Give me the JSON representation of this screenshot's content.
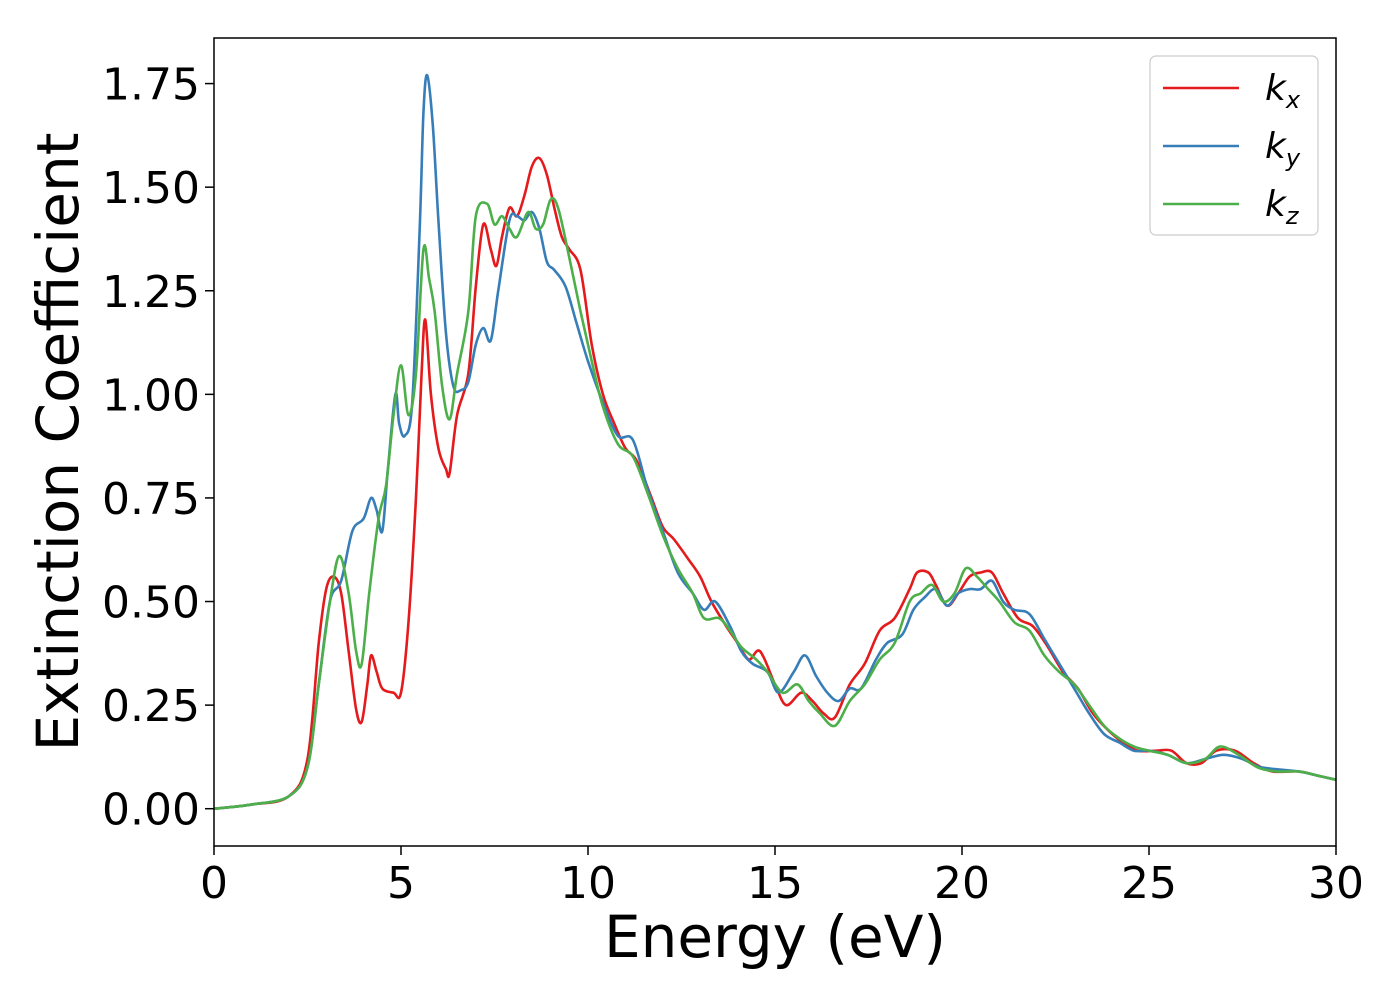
{
  "chart_data": {
    "type": "line",
    "title": "",
    "xlabel": "Energy (eV)",
    "ylabel": "Extinction Coefficient",
    "xlim": [
      0,
      30
    ],
    "ylim": [
      -0.09,
      1.86
    ],
    "xticks": [
      0,
      5,
      10,
      15,
      20,
      25,
      30
    ],
    "xtick_labels": [
      "0",
      "5",
      "10",
      "15",
      "20",
      "25",
      "30"
    ],
    "yticks": [
      0,
      0.25,
      0.5,
      0.75,
      1.0,
      1.25,
      1.5,
      1.75
    ],
    "ytick_labels": [
      "0.00",
      "0.25",
      "0.50",
      "0.75",
      "1.00",
      "1.25",
      "1.50",
      "1.75"
    ],
    "grid": false,
    "legend_position": "top-right",
    "series": [
      {
        "name": "k",
        "subscript": "x",
        "color": "#e41a1c",
        "points": [
          [
            0,
            0
          ],
          [
            1,
            0.01
          ],
          [
            2,
            0.03
          ],
          [
            2.5,
            0.12
          ],
          [
            2.8,
            0.4
          ],
          [
            3.0,
            0.53
          ],
          [
            3.2,
            0.56
          ],
          [
            3.4,
            0.52
          ],
          [
            3.6,
            0.38
          ],
          [
            3.8,
            0.24
          ],
          [
            3.95,
            0.21
          ],
          [
            4.1,
            0.3
          ],
          [
            4.2,
            0.37
          ],
          [
            4.35,
            0.33
          ],
          [
            4.5,
            0.29
          ],
          [
            4.8,
            0.28
          ],
          [
            5.0,
            0.28
          ],
          [
            5.2,
            0.45
          ],
          [
            5.4,
            0.75
          ],
          [
            5.55,
            1.05
          ],
          [
            5.65,
            1.18
          ],
          [
            5.8,
            1.0
          ],
          [
            6.0,
            0.87
          ],
          [
            6.2,
            0.82
          ],
          [
            6.3,
            0.81
          ],
          [
            6.5,
            0.95
          ],
          [
            6.8,
            1.05
          ],
          [
            7.0,
            1.26
          ],
          [
            7.2,
            1.41
          ],
          [
            7.4,
            1.35
          ],
          [
            7.55,
            1.31
          ],
          [
            7.7,
            1.38
          ],
          [
            7.9,
            1.45
          ],
          [
            8.1,
            1.43
          ],
          [
            8.3,
            1.48
          ],
          [
            8.5,
            1.55
          ],
          [
            8.7,
            1.57
          ],
          [
            8.9,
            1.53
          ],
          [
            9.1,
            1.45
          ],
          [
            9.3,
            1.38
          ],
          [
            9.5,
            1.35
          ],
          [
            9.8,
            1.3
          ],
          [
            10.1,
            1.12
          ],
          [
            10.4,
            1.0
          ],
          [
            10.7,
            0.93
          ],
          [
            11.0,
            0.87
          ],
          [
            11.3,
            0.84
          ],
          [
            11.7,
            0.75
          ],
          [
            12.0,
            0.68
          ],
          [
            12.3,
            0.65
          ],
          [
            12.7,
            0.6
          ],
          [
            13.0,
            0.56
          ],
          [
            13.3,
            0.5
          ],
          [
            13.7,
            0.44
          ],
          [
            14.0,
            0.4
          ],
          [
            14.3,
            0.36
          ],
          [
            14.6,
            0.38
          ],
          [
            15.0,
            0.3
          ],
          [
            15.3,
            0.25
          ],
          [
            15.7,
            0.28
          ],
          [
            16.0,
            0.26
          ],
          [
            16.3,
            0.23
          ],
          [
            16.6,
            0.22
          ],
          [
            17.0,
            0.3
          ],
          [
            17.4,
            0.35
          ],
          [
            17.8,
            0.43
          ],
          [
            18.2,
            0.46
          ],
          [
            18.6,
            0.53
          ],
          [
            18.8,
            0.57
          ],
          [
            19.1,
            0.57
          ],
          [
            19.3,
            0.54
          ],
          [
            19.6,
            0.49
          ],
          [
            19.9,
            0.52
          ],
          [
            20.2,
            0.56
          ],
          [
            20.5,
            0.57
          ],
          [
            20.8,
            0.57
          ],
          [
            21.1,
            0.52
          ],
          [
            21.5,
            0.46
          ],
          [
            21.9,
            0.44
          ],
          [
            22.3,
            0.39
          ],
          [
            22.7,
            0.33
          ],
          [
            23.1,
            0.29
          ],
          [
            23.5,
            0.23
          ],
          [
            23.9,
            0.19
          ],
          [
            24.3,
            0.16
          ],
          [
            24.7,
            0.14
          ],
          [
            25.2,
            0.14
          ],
          [
            25.6,
            0.14
          ],
          [
            26.0,
            0.11
          ],
          [
            26.4,
            0.11
          ],
          [
            26.8,
            0.14
          ],
          [
            27.3,
            0.14
          ],
          [
            27.8,
            0.11
          ],
          [
            28.3,
            0.09
          ],
          [
            29.0,
            0.09
          ],
          [
            29.5,
            0.08
          ],
          [
            30,
            0.07
          ]
        ]
      },
      {
        "name": "k",
        "subscript": "y",
        "color": "#377eb8",
        "points": [
          [
            0,
            0
          ],
          [
            1,
            0.01
          ],
          [
            2,
            0.03
          ],
          [
            2.5,
            0.1
          ],
          [
            2.8,
            0.3
          ],
          [
            3.1,
            0.5
          ],
          [
            3.4,
            0.55
          ],
          [
            3.7,
            0.67
          ],
          [
            4.0,
            0.7
          ],
          [
            4.2,
            0.75
          ],
          [
            4.35,
            0.72
          ],
          [
            4.5,
            0.67
          ],
          [
            4.65,
            0.82
          ],
          [
            4.85,
            1.0
          ],
          [
            4.95,
            0.93
          ],
          [
            5.1,
            0.9
          ],
          [
            5.3,
            0.98
          ],
          [
            5.5,
            1.4
          ],
          [
            5.6,
            1.68
          ],
          [
            5.7,
            1.77
          ],
          [
            5.85,
            1.65
          ],
          [
            6.0,
            1.42
          ],
          [
            6.2,
            1.15
          ],
          [
            6.4,
            1.02
          ],
          [
            6.6,
            1.01
          ],
          [
            6.8,
            1.03
          ],
          [
            7.0,
            1.12
          ],
          [
            7.2,
            1.16
          ],
          [
            7.4,
            1.13
          ],
          [
            7.6,
            1.25
          ],
          [
            7.9,
            1.42
          ],
          [
            8.1,
            1.43
          ],
          [
            8.3,
            1.42
          ],
          [
            8.5,
            1.44
          ],
          [
            8.7,
            1.4
          ],
          [
            8.9,
            1.32
          ],
          [
            9.1,
            1.3
          ],
          [
            9.4,
            1.26
          ],
          [
            9.7,
            1.17
          ],
          [
            10.0,
            1.08
          ],
          [
            10.4,
            0.98
          ],
          [
            10.8,
            0.9
          ],
          [
            11.2,
            0.89
          ],
          [
            11.6,
            0.77
          ],
          [
            12.0,
            0.67
          ],
          [
            12.4,
            0.57
          ],
          [
            12.8,
            0.52
          ],
          [
            13.1,
            0.48
          ],
          [
            13.4,
            0.5
          ],
          [
            13.8,
            0.44
          ],
          [
            14.1,
            0.38
          ],
          [
            14.4,
            0.35
          ],
          [
            14.8,
            0.33
          ],
          [
            15.1,
            0.28
          ],
          [
            15.5,
            0.33
          ],
          [
            15.8,
            0.37
          ],
          [
            16.1,
            0.32
          ],
          [
            16.4,
            0.28
          ],
          [
            16.7,
            0.26
          ],
          [
            17.0,
            0.29
          ],
          [
            17.3,
            0.29
          ],
          [
            17.7,
            0.36
          ],
          [
            18.0,
            0.4
          ],
          [
            18.4,
            0.42
          ],
          [
            18.7,
            0.48
          ],
          [
            19.0,
            0.51
          ],
          [
            19.3,
            0.53
          ],
          [
            19.6,
            0.49
          ],
          [
            19.9,
            0.52
          ],
          [
            20.2,
            0.53
          ],
          [
            20.5,
            0.53
          ],
          [
            20.8,
            0.55
          ],
          [
            21.1,
            0.5
          ],
          [
            21.4,
            0.48
          ],
          [
            21.8,
            0.47
          ],
          [
            22.2,
            0.41
          ],
          [
            22.6,
            0.35
          ],
          [
            23.0,
            0.29
          ],
          [
            23.4,
            0.23
          ],
          [
            23.8,
            0.18
          ],
          [
            24.2,
            0.16
          ],
          [
            24.6,
            0.14
          ],
          [
            25.0,
            0.14
          ],
          [
            25.5,
            0.13
          ],
          [
            26.0,
            0.11
          ],
          [
            26.5,
            0.12
          ],
          [
            27.0,
            0.13
          ],
          [
            27.5,
            0.12
          ],
          [
            28.0,
            0.1
          ],
          [
            29.0,
            0.09
          ],
          [
            29.5,
            0.08
          ],
          [
            30,
            0.07
          ]
        ]
      },
      {
        "name": "k",
        "subscript": "z",
        "color": "#4daf4a",
        "points": [
          [
            0,
            0
          ],
          [
            1,
            0.01
          ],
          [
            2,
            0.03
          ],
          [
            2.5,
            0.1
          ],
          [
            2.8,
            0.3
          ],
          [
            3.1,
            0.5
          ],
          [
            3.35,
            0.61
          ],
          [
            3.6,
            0.52
          ],
          [
            3.8,
            0.38
          ],
          [
            3.95,
            0.35
          ],
          [
            4.15,
            0.52
          ],
          [
            4.4,
            0.7
          ],
          [
            4.6,
            0.78
          ],
          [
            4.8,
            0.95
          ],
          [
            5.0,
            1.07
          ],
          [
            5.2,
            0.95
          ],
          [
            5.4,
            1.05
          ],
          [
            5.6,
            1.35
          ],
          [
            5.75,
            1.28
          ],
          [
            5.9,
            1.2
          ],
          [
            6.1,
            1.02
          ],
          [
            6.3,
            0.94
          ],
          [
            6.5,
            1.05
          ],
          [
            6.8,
            1.2
          ],
          [
            7.0,
            1.43
          ],
          [
            7.3,
            1.46
          ],
          [
            7.5,
            1.41
          ],
          [
            7.7,
            1.43
          ],
          [
            7.9,
            1.4
          ],
          [
            8.1,
            1.38
          ],
          [
            8.4,
            1.44
          ],
          [
            8.6,
            1.4
          ],
          [
            8.8,
            1.41
          ],
          [
            9.0,
            1.47
          ],
          [
            9.2,
            1.45
          ],
          [
            9.5,
            1.33
          ],
          [
            9.8,
            1.2
          ],
          [
            10.1,
            1.08
          ],
          [
            10.4,
            0.97
          ],
          [
            10.8,
            0.88
          ],
          [
            11.2,
            0.85
          ],
          [
            11.6,
            0.76
          ],
          [
            12.0,
            0.66
          ],
          [
            12.4,
            0.58
          ],
          [
            12.8,
            0.52
          ],
          [
            13.1,
            0.46
          ],
          [
            13.5,
            0.46
          ],
          [
            13.8,
            0.43
          ],
          [
            14.1,
            0.39
          ],
          [
            14.5,
            0.36
          ],
          [
            14.8,
            0.33
          ],
          [
            15.2,
            0.28
          ],
          [
            15.6,
            0.3
          ],
          [
            15.9,
            0.26
          ],
          [
            16.2,
            0.23
          ],
          [
            16.6,
            0.2
          ],
          [
            17.0,
            0.26
          ],
          [
            17.4,
            0.3
          ],
          [
            17.8,
            0.36
          ],
          [
            18.2,
            0.4
          ],
          [
            18.6,
            0.5
          ],
          [
            18.9,
            0.52
          ],
          [
            19.2,
            0.54
          ],
          [
            19.5,
            0.5
          ],
          [
            19.8,
            0.52
          ],
          [
            20.1,
            0.58
          ],
          [
            20.4,
            0.56
          ],
          [
            20.7,
            0.53
          ],
          [
            21.0,
            0.5
          ],
          [
            21.4,
            0.45
          ],
          [
            21.8,
            0.43
          ],
          [
            22.2,
            0.37
          ],
          [
            22.6,
            0.33
          ],
          [
            23.0,
            0.3
          ],
          [
            23.4,
            0.25
          ],
          [
            23.8,
            0.2
          ],
          [
            24.2,
            0.17
          ],
          [
            24.6,
            0.15
          ],
          [
            25.0,
            0.14
          ],
          [
            25.5,
            0.13
          ],
          [
            26.0,
            0.11
          ],
          [
            26.5,
            0.12
          ],
          [
            26.9,
            0.15
          ],
          [
            27.4,
            0.13
          ],
          [
            27.9,
            0.1
          ],
          [
            28.4,
            0.09
          ],
          [
            29.0,
            0.09
          ],
          [
            29.5,
            0.08
          ],
          [
            30,
            0.07
          ]
        ]
      }
    ]
  }
}
